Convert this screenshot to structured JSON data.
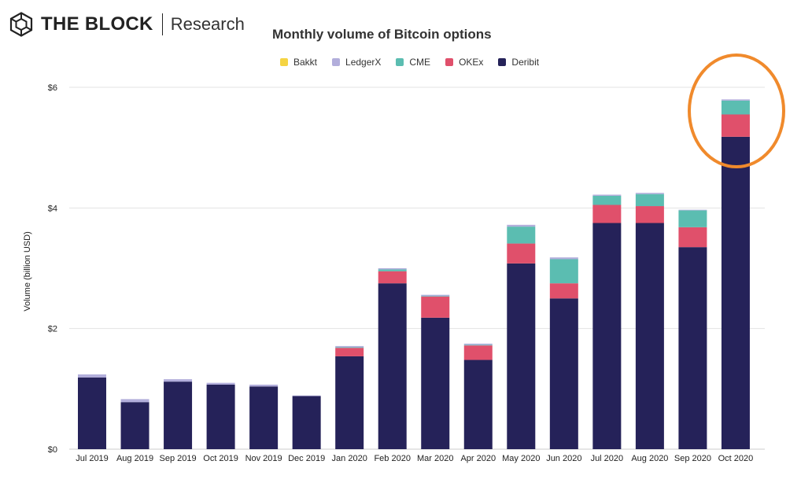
{
  "brand": {
    "name": "THE BLOCK",
    "sub": "Research"
  },
  "colors": {
    "Bakkt": "#f5d443",
    "LedgerX": "#b2aedb",
    "CME": "#5bbdb1",
    "OKEx": "#e0506b",
    "Deribit": "#252259",
    "highlight": "#f08a2c",
    "grid": "#e3e3e3"
  },
  "chart_data": {
    "type": "bar",
    "stacked": true,
    "title": "Monthly volume of Bitcoin options",
    "ylabel": "Volume (billion USD)",
    "xlabel": "",
    "ylim": [
      0,
      6
    ],
    "yticks": [
      0,
      2,
      4,
      6
    ],
    "ytick_labels": [
      "$0",
      "$2",
      "$4",
      "$6"
    ],
    "grid": true,
    "legend_position": "top",
    "categories": [
      "Jul 2019",
      "Aug 2019",
      "Sep 2019",
      "Oct 2019",
      "Nov 2019",
      "Dec 2019",
      "Jan 2020",
      "Feb 2020",
      "Mar 2020",
      "Apr 2020",
      "May 2020",
      "Jun 2020",
      "Jul 2020",
      "Aug 2020",
      "Sep 2020",
      "Oct 2020"
    ],
    "series": [
      {
        "name": "Deribit",
        "values": [
          1.19,
          0.78,
          1.12,
          1.07,
          1.04,
          0.88,
          1.54,
          2.75,
          2.18,
          1.48,
          3.08,
          2.5,
          3.75,
          3.75,
          3.35,
          5.18
        ]
      },
      {
        "name": "OKEx",
        "values": [
          0,
          0,
          0,
          0,
          0,
          0,
          0.14,
          0.2,
          0.35,
          0.24,
          0.33,
          0.25,
          0.3,
          0.28,
          0.33,
          0.37
        ]
      },
      {
        "name": "CME",
        "values": [
          0,
          0,
          0,
          0,
          0,
          0,
          0.01,
          0.03,
          0.01,
          0.01,
          0.28,
          0.4,
          0.15,
          0.2,
          0.28,
          0.23
        ]
      },
      {
        "name": "LedgerX",
        "values": [
          0.05,
          0.05,
          0.04,
          0.03,
          0.03,
          0.01,
          0.02,
          0.02,
          0.02,
          0.02,
          0.03,
          0.03,
          0.02,
          0.02,
          0.01,
          0.02
        ]
      },
      {
        "name": "Bakkt",
        "values": [
          0,
          0,
          0,
          0,
          0,
          0,
          0,
          0,
          0,
          0,
          0,
          0,
          0,
          0,
          0,
          0
        ]
      }
    ],
    "legend_order": [
      "Bakkt",
      "LedgerX",
      "CME",
      "OKEx",
      "Deribit"
    ],
    "highlight": {
      "category": "Oct 2020",
      "shape": "ellipse"
    }
  }
}
